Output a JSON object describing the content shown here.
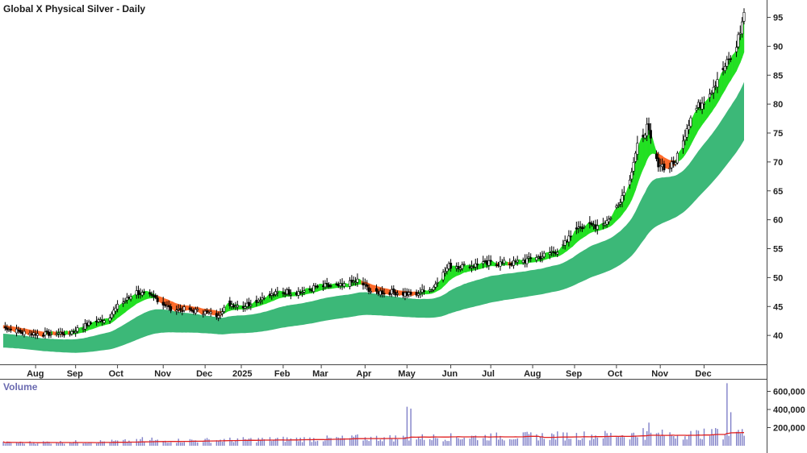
{
  "chart_data": {
    "type": "candlestick",
    "title": "Global X Physical Silver - Daily",
    "x_tick_labels": [
      "Aug",
      "Sep",
      "Oct",
      "Nov",
      "Dec",
      "2025",
      "Feb",
      "Mar",
      "Apr",
      "May",
      "Jun",
      "Jul",
      "Aug",
      "Sep",
      "Oct",
      "Nov",
      "Dec"
    ],
    "price_panel": {
      "ylim": [
        35,
        98
      ],
      "y_ticks": [
        40,
        45,
        50,
        55,
        60,
        65,
        70,
        75,
        80,
        85,
        90,
        95
      ],
      "anchors": [
        [
          0,
          41.5
        ],
        [
          10,
          40.5
        ],
        [
          20,
          40.2
        ],
        [
          35,
          40.5
        ],
        [
          45,
          42
        ],
        [
          55,
          43
        ],
        [
          60,
          45
        ],
        [
          70,
          47.5
        ],
        [
          80,
          46.5
        ],
        [
          88,
          44.5
        ],
        [
          96,
          44.5
        ],
        [
          106,
          44
        ],
        [
          112,
          43.5
        ],
        [
          118,
          45.5
        ],
        [
          126,
          45
        ],
        [
          136,
          46.5
        ],
        [
          146,
          47.5
        ],
        [
          156,
          47.5
        ],
        [
          166,
          48.5
        ],
        [
          178,
          48.5
        ],
        [
          186,
          49.5
        ],
        [
          194,
          47.5
        ],
        [
          204,
          47.5
        ],
        [
          214,
          47
        ],
        [
          225,
          48
        ],
        [
          234,
          52
        ],
        [
          244,
          52
        ],
        [
          256,
          52.5
        ],
        [
          268,
          52.5
        ],
        [
          281,
          53.5
        ],
        [
          293,
          55
        ],
        [
          302,
          59
        ],
        [
          312,
          59
        ],
        [
          318,
          60
        ],
        [
          323,
          63
        ],
        [
          328,
          66
        ],
        [
          333,
          73
        ],
        [
          338,
          76
        ],
        [
          343,
          70
        ],
        [
          348,
          69
        ],
        [
          352,
          69.5
        ],
        [
          356,
          73
        ],
        [
          361,
          78
        ],
        [
          366,
          80
        ],
        [
          371,
          82
        ],
        [
          376,
          85
        ],
        [
          380,
          87
        ],
        [
          384,
          89
        ],
        [
          388,
          94
        ],
        [
          389,
          96
        ]
      ],
      "fast_ribbon_label": "short-term moving average group",
      "slow_ribbon_label": "long-term moving average group",
      "colors": {
        "candle_up": "#ffffff",
        "candle_down": "#000000",
        "fast_up": "#22e022",
        "fast_down": "#ff6a2a",
        "slow": "#3cb878"
      }
    },
    "volume_panel": {
      "title": "Volume",
      "ylim": [
        0,
        720000
      ],
      "y_ticks": [
        200000,
        400000,
        600000
      ],
      "y_tick_labels": [
        "200,000",
        "400,000",
        "600,000"
      ],
      "bar_color": "#8080c8",
      "ma_color": "#e02020",
      "spikes": [
        [
          73,
          95000
        ],
        [
          78,
          90000
        ],
        [
          186,
          125000
        ],
        [
          212,
          430000
        ],
        [
          214,
          410000
        ],
        [
          336,
          195000
        ],
        [
          339,
          255000
        ],
        [
          341,
          180000
        ],
        [
          358,
          105000
        ],
        [
          374,
          195000
        ],
        [
          380,
          690000
        ],
        [
          382,
          370000
        ],
        [
          386,
          175000
        ]
      ]
    },
    "x_domain_days": [
      0,
      389
    ],
    "month_starts": [
      17,
      38,
      60,
      84,
      106,
      125,
      147,
      167,
      190,
      212,
      235,
      256,
      278,
      300,
      322,
      345,
      368
    ],
    "grid": false,
    "legend": "none"
  }
}
